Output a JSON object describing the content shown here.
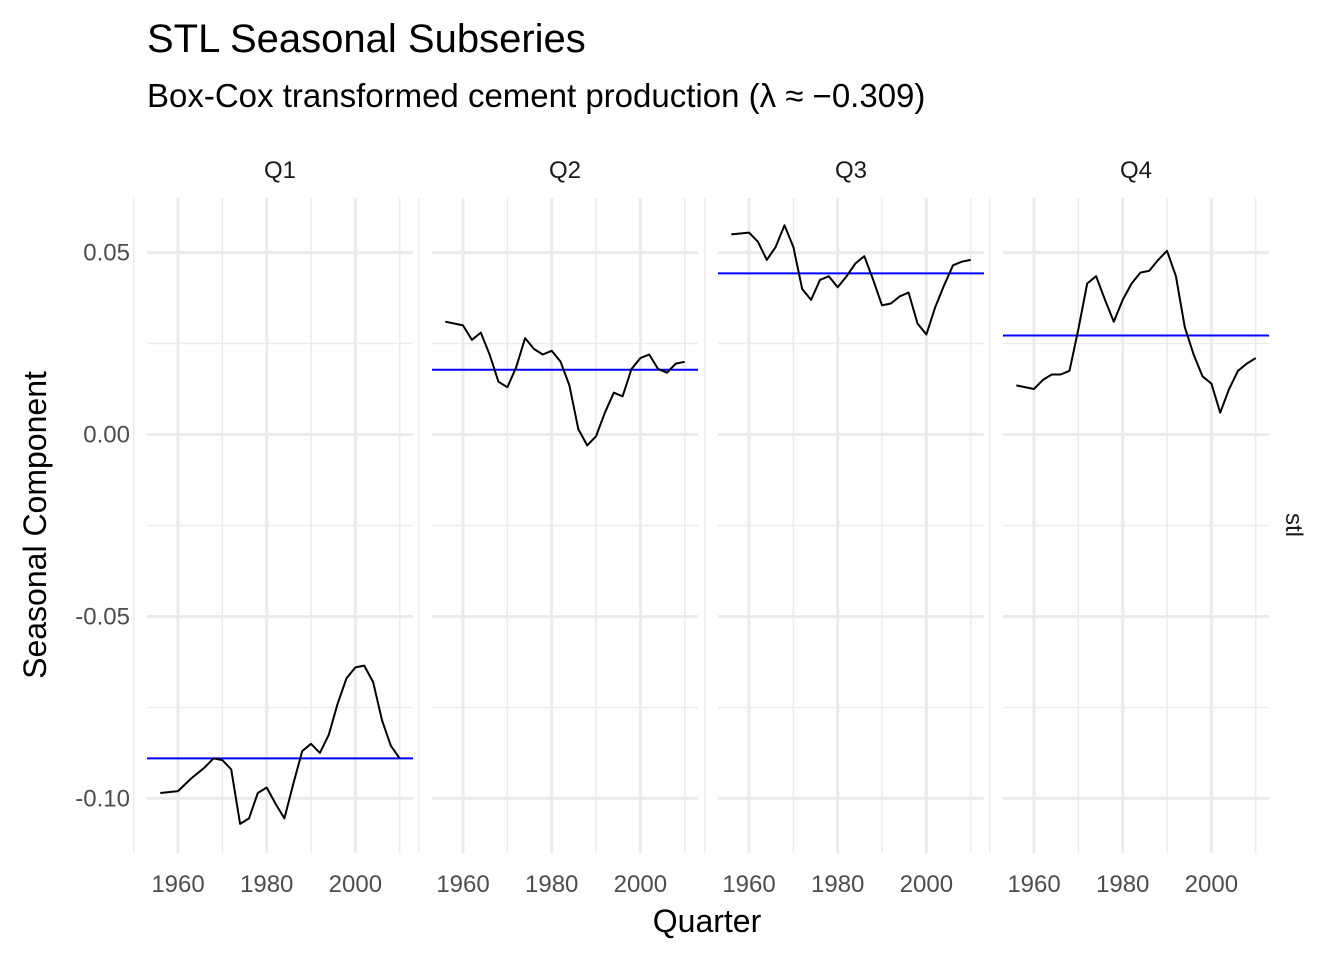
{
  "chart_data": {
    "type": "line",
    "title": "STL Seasonal Subseries",
    "subtitle": "Box-Cox transformed cement production (λ ≈ −0.309)",
    "xlabel": "Quarter",
    "ylabel": "Seasonal Component",
    "facet_strip_right": "stl",
    "ylim": [
      -0.115,
      0.065
    ],
    "xlim": [
      1953,
      2013
    ],
    "x_ticks": [
      1960,
      1980,
      2000
    ],
    "x_tick_labels": [
      "1960",
      "1980",
      "2000"
    ],
    "y_ticks": [
      0.05,
      0.0,
      -0.05,
      -0.1
    ],
    "y_tick_labels": [
      "0.05",
      "0.00",
      "-0.05",
      "-0.10"
    ],
    "grid": true,
    "line_color": "#000000",
    "mean_line_color": "#0000ff",
    "panels": [
      {
        "label": "Q1",
        "mean": -0.089,
        "x": [
          1956,
          1960,
          1963,
          1966,
          1968,
          1970,
          1972,
          1974,
          1976,
          1978,
          1980,
          1982,
          1984,
          1986,
          1988,
          1990,
          1992,
          1994,
          1996,
          1998,
          2000,
          2002,
          2004,
          2006,
          2008,
          2010
        ],
        "y": [
          -0.0985,
          -0.098,
          -0.0945,
          -0.0915,
          -0.089,
          -0.0895,
          -0.092,
          -0.107,
          -0.1055,
          -0.0985,
          -0.097,
          -0.1015,
          -0.1055,
          -0.096,
          -0.087,
          -0.085,
          -0.0875,
          -0.0825,
          -0.074,
          -0.067,
          -0.064,
          -0.0635,
          -0.068,
          -0.0785,
          -0.0855,
          -0.089
        ]
      },
      {
        "label": "Q2",
        "mean": 0.0178,
        "x": [
          1956,
          1960,
          1962,
          1964,
          1966,
          1968,
          1970,
          1972,
          1974,
          1976,
          1978,
          1980,
          1982,
          1984,
          1986,
          1988,
          1990,
          1992,
          1994,
          1996,
          1998,
          2000,
          2002,
          2004,
          2006,
          2008,
          2010
        ],
        "y": [
          0.031,
          0.03,
          0.026,
          0.028,
          0.022,
          0.0145,
          0.013,
          0.0185,
          0.0265,
          0.0235,
          0.022,
          0.023,
          0.02,
          0.0135,
          0.0015,
          -0.003,
          -0.0005,
          0.006,
          0.0115,
          0.0105,
          0.018,
          0.021,
          0.022,
          0.018,
          0.017,
          0.0195,
          0.02
        ]
      },
      {
        "label": "Q3",
        "mean": 0.0443,
        "x": [
          1956,
          1960,
          1962,
          1964,
          1966,
          1968,
          1970,
          1972,
          1974,
          1976,
          1978,
          1980,
          1982,
          1984,
          1986,
          1988,
          1990,
          1992,
          1994,
          1996,
          1998,
          2000,
          2002,
          2004,
          2006,
          2008,
          2010
        ],
        "y": [
          0.055,
          0.0555,
          0.053,
          0.048,
          0.0515,
          0.0575,
          0.0515,
          0.04,
          0.037,
          0.0425,
          0.0435,
          0.0405,
          0.0435,
          0.047,
          0.049,
          0.0425,
          0.0355,
          0.036,
          0.038,
          0.039,
          0.0305,
          0.0275,
          0.035,
          0.041,
          0.0465,
          0.0475,
          0.048
        ]
      },
      {
        "label": "Q4",
        "mean": 0.0272,
        "x": [
          1956,
          1960,
          1962,
          1964,
          1966,
          1968,
          1970,
          1972,
          1974,
          1976,
          1978,
          1980,
          1982,
          1984,
          1986,
          1988,
          1990,
          1992,
          1994,
          1996,
          1998,
          2000,
          2002,
          2004,
          2006,
          2008,
          2010
        ],
        "y": [
          0.0135,
          0.0125,
          0.015,
          0.0165,
          0.0165,
          0.0175,
          0.029,
          0.0415,
          0.0435,
          0.037,
          0.031,
          0.037,
          0.0415,
          0.0445,
          0.045,
          0.048,
          0.0505,
          0.0435,
          0.0295,
          0.022,
          0.016,
          0.014,
          0.006,
          0.0125,
          0.0175,
          0.0195,
          0.021
        ]
      }
    ]
  }
}
